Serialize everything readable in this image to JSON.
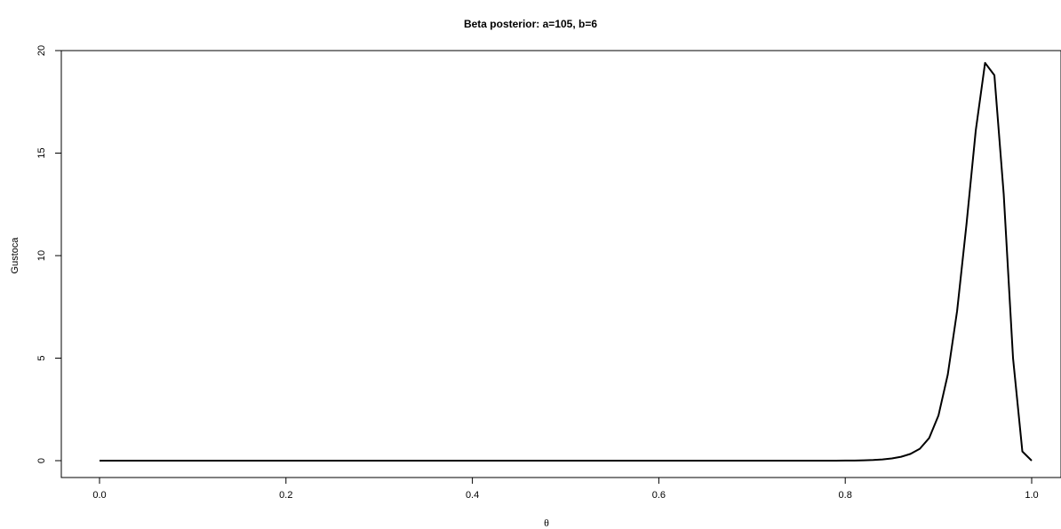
{
  "chart_data": {
    "type": "line",
    "title": "Beta posterior: a=105, b=6",
    "xlabel": "θ",
    "ylabel": "Gustoca",
    "xlim": [
      0,
      1
    ],
    "ylim": [
      0,
      20
    ],
    "x_ticks": [
      "0.0",
      "0.2",
      "0.4",
      "0.6",
      "0.8",
      "1.0"
    ],
    "y_ticks": [
      "0",
      "5",
      "10",
      "15",
      "20"
    ],
    "grid": false,
    "line_color": "#000000",
    "series": [
      {
        "x": [
          0.0,
          0.01,
          0.02,
          0.03,
          0.04,
          0.05,
          0.06,
          0.07,
          0.08,
          0.09,
          0.1,
          0.11,
          0.12,
          0.13,
          0.14,
          0.15,
          0.16,
          0.17,
          0.18,
          0.19,
          0.2,
          0.21,
          0.22,
          0.23,
          0.24,
          0.25,
          0.26,
          0.27,
          0.28,
          0.29,
          0.3,
          0.31,
          0.32,
          0.33,
          0.34,
          0.35,
          0.36,
          0.37,
          0.38,
          0.39,
          0.4,
          0.41,
          0.42,
          0.43,
          0.44,
          0.45,
          0.46,
          0.47,
          0.48,
          0.49,
          0.5,
          0.51,
          0.52,
          0.53,
          0.54,
          0.55,
          0.56,
          0.57,
          0.58,
          0.59,
          0.6,
          0.61,
          0.62,
          0.63,
          0.64,
          0.65,
          0.66,
          0.67,
          0.68,
          0.69,
          0.7,
          0.71,
          0.72,
          0.73,
          0.74,
          0.75,
          0.76,
          0.77,
          0.78,
          0.79,
          0.8,
          0.81,
          0.82,
          0.83,
          0.84,
          0.85,
          0.86,
          0.87,
          0.88,
          0.89,
          0.9,
          0.91,
          0.92,
          0.93,
          0.94,
          0.95,
          0.96,
          0.97,
          0.98,
          0.99,
          1.0
        ],
        "values": [
          0,
          0,
          0,
          0,
          0,
          0,
          0,
          0,
          0,
          0,
          0,
          0,
          0,
          0,
          0,
          0,
          0,
          0,
          0,
          0,
          0,
          0,
          0,
          0,
          0,
          0,
          0,
          0,
          0,
          0,
          0,
          0,
          0,
          0,
          0,
          0,
          0,
          0,
          0,
          0,
          0,
          0,
          0,
          0,
          0,
          0,
          0,
          0,
          0,
          0,
          0,
          0,
          0,
          0,
          0,
          0,
          0,
          0,
          0,
          0,
          0,
          0,
          0,
          0,
          0,
          0,
          0,
          0,
          0,
          0,
          0,
          0,
          0,
          0,
          0,
          0,
          0,
          0,
          0,
          0.002,
          0.004,
          0.008,
          0.016,
          0.03,
          0.06,
          0.11,
          0.19,
          0.33,
          0.58,
          1.1,
          2.2,
          4.2,
          7.3,
          11.5,
          16.1,
          19.4,
          18.8,
          13.0,
          5.0,
          0.45,
          0
        ]
      }
    ]
  }
}
